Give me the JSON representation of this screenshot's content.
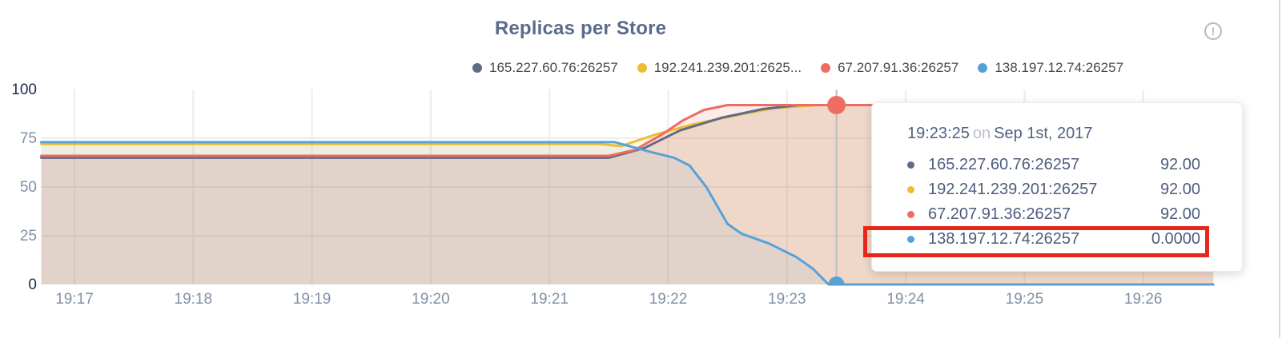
{
  "header": {
    "title": "Replicas per Store",
    "info_icon_glyph": "!"
  },
  "colors": {
    "title_text": "#5a6b8b",
    "axis_label_light": "#8191a5",
    "axis_label_dark": "#22304c",
    "gridline": "#ececec",
    "hover_line": "#b8bec4",
    "tooltip_text": "#4e5d7d",
    "annotation_red": "#e8271c",
    "series_gray": "#5f6c87",
    "series_yellow": "#eebd33",
    "series_red": "#ee6c62",
    "series_blue": "#56a2d8"
  },
  "legend": {
    "items": [
      {
        "label": "165.227.60.76:26257",
        "color": "#5f6c87"
      },
      {
        "label": "192.241.239.201:2625...",
        "color": "#eebd33"
      },
      {
        "label": "67.207.91.36:26257",
        "color": "#ee6c62"
      },
      {
        "label": "138.197.12.74:26257",
        "color": "#56a2d8"
      }
    ]
  },
  "chart_data": {
    "type": "area",
    "title": "Replicas per Store",
    "xlabel": "",
    "ylabel": "",
    "x_tick_labels": [
      "19:17",
      "19:18",
      "19:19",
      "19:20",
      "19:21",
      "19:22",
      "19:23",
      "19:24",
      "19:25",
      "19:26"
    ],
    "x_unit_minutes_after_19_17": true,
    "ylim": [
      0,
      100
    ],
    "y_ticks": [
      {
        "value": 0,
        "emphasis": true
      },
      {
        "value": 25,
        "emphasis": false
      },
      {
        "value": 50,
        "emphasis": false
      },
      {
        "value": 75,
        "emphasis": false
      },
      {
        "value": 100,
        "emphasis": true
      }
    ],
    "grid": true,
    "legend_position": "top",
    "series": [
      {
        "name": "165.227.60.76:26257",
        "color": "#5f6c87",
        "fill_opacity": 0.1,
        "points": [
          [
            -0.28,
            65
          ],
          [
            4.5,
            65
          ],
          [
            4.8,
            70
          ],
          [
            5.1,
            79
          ],
          [
            5.45,
            85.5
          ],
          [
            5.8,
            90
          ],
          [
            6.1,
            92
          ],
          [
            9.59,
            92
          ]
        ]
      },
      {
        "name": "192.241.239.201:26257",
        "color": "#eebd33",
        "fill_opacity": 0.13,
        "points": [
          [
            -0.28,
            72
          ],
          [
            4.42,
            72
          ],
          [
            4.6,
            71
          ],
          [
            4.9,
            77
          ],
          [
            5.2,
            82
          ],
          [
            5.55,
            86.5
          ],
          [
            5.9,
            90.5
          ],
          [
            6.25,
            92
          ],
          [
            9.59,
            92
          ]
        ]
      },
      {
        "name": "67.207.91.36:26257",
        "color": "#ee6c62",
        "fill_opacity": 0.13,
        "points": [
          [
            -0.28,
            66
          ],
          [
            4.5,
            66
          ],
          [
            4.72,
            69
          ],
          [
            4.95,
            77
          ],
          [
            5.12,
            84
          ],
          [
            5.3,
            89.5
          ],
          [
            5.5,
            92
          ],
          [
            9.59,
            92
          ]
        ]
      },
      {
        "name": "138.197.12.74:26257",
        "color": "#56a2d8",
        "fill_opacity": 0.09,
        "points": [
          [
            -0.28,
            73
          ],
          [
            4.55,
            73
          ],
          [
            4.85,
            68
          ],
          [
            5.05,
            65
          ],
          [
            5.18,
            61
          ],
          [
            5.32,
            50
          ],
          [
            5.5,
            31
          ],
          [
            5.62,
            26
          ],
          [
            5.85,
            21
          ],
          [
            6.08,
            14
          ],
          [
            6.22,
            8
          ],
          [
            6.35,
            0
          ],
          [
            9.59,
            0
          ]
        ]
      }
    ],
    "hover": {
      "time_minutes_after_19_17": 6.4167,
      "marked_points": [
        {
          "series": "67.207.91.36:26257",
          "value": 92,
          "color": "#ee6c62",
          "radius": 11.5
        },
        {
          "series": "138.197.12.74:26257",
          "value": 0,
          "color": "#56a2d8",
          "radius": 10
        }
      ]
    }
  },
  "tooltip": {
    "time": "19:23:25",
    "connector": "on",
    "date": "Sep 1st, 2017",
    "rows": [
      {
        "label": "165.227.60.76:26257",
        "value": "92.00",
        "color": "#5f6c87",
        "highlighted": false
      },
      {
        "label": "192.241.239.201:26257",
        "value": "92.00",
        "color": "#eebd33",
        "highlighted": false
      },
      {
        "label": "67.207.91.36:26257",
        "value": "92.00",
        "color": "#ee6c62",
        "highlighted": false
      },
      {
        "label": "138.197.12.74:26257",
        "value": "0.0000",
        "color": "#56a2d8",
        "highlighted": true
      }
    ]
  }
}
